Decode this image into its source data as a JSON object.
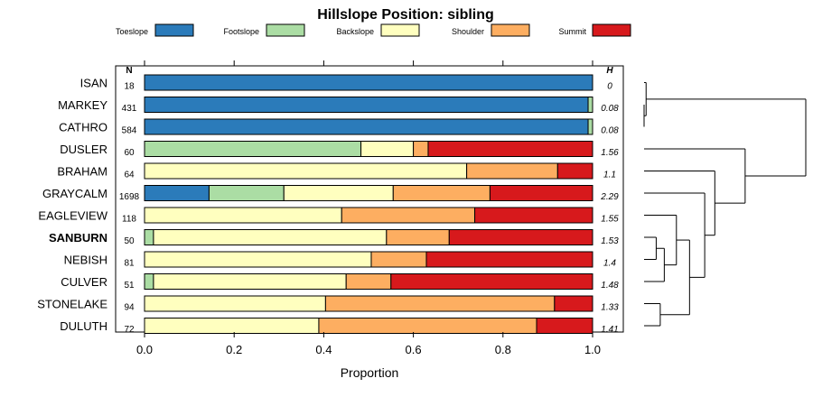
{
  "chart_data": {
    "type": "bar",
    "stacked": true,
    "orientation": "horizontal",
    "title": "Hillslope Position: sibling",
    "xlabel": "Proportion",
    "xlim": [
      0,
      1
    ],
    "x_ticks": [
      "0.0",
      "0.2",
      "0.4",
      "0.6",
      "0.8",
      "1.0"
    ],
    "x_tick_values": [
      0,
      0.2,
      0.4,
      0.6,
      0.8,
      1.0
    ],
    "n_header": "N",
    "h_header": "H",
    "legend_position": "top",
    "series": [
      {
        "name": "Toeslope",
        "color": "#2b7bba"
      },
      {
        "name": "Footslope",
        "color": "#abdda4"
      },
      {
        "name": "Backslope",
        "color": "#ffffbf"
      },
      {
        "name": "Shoulder",
        "color": "#fdae61"
      },
      {
        "name": "Summit",
        "color": "#d7191c"
      }
    ],
    "rows": [
      {
        "label": "ISAN",
        "n": "18",
        "h": "0",
        "bold": false,
        "values": [
          1.0,
          0,
          0,
          0,
          0
        ]
      },
      {
        "label": "MARKEY",
        "n": "431",
        "h": "0.08",
        "bold": false,
        "values": [
          0.99,
          0.01,
          0,
          0,
          0
        ]
      },
      {
        "label": "CATHRO",
        "n": "584",
        "h": "0.08",
        "bold": false,
        "values": [
          0.99,
          0.01,
          0,
          0,
          0
        ]
      },
      {
        "label": "DUSLER",
        "n": "60",
        "h": "1.56",
        "bold": false,
        "values": [
          0,
          0.483,
          0.117,
          0.033,
          0.367
        ]
      },
      {
        "label": "BRAHAM",
        "n": "64",
        "h": "1.1",
        "bold": false,
        "values": [
          0,
          0,
          0.719,
          0.203,
          0.078
        ]
      },
      {
        "label": "GRAYCALM",
        "n": "1698",
        "h": "2.29",
        "bold": false,
        "values": [
          0.144,
          0.167,
          0.244,
          0.216,
          0.229
        ]
      },
      {
        "label": "EAGLEVIEW",
        "n": "118",
        "h": "1.55",
        "bold": false,
        "values": [
          0,
          0,
          0.44,
          0.297,
          0.263
        ]
      },
      {
        "label": "SANBURN",
        "n": "50",
        "h": "1.53",
        "bold": true,
        "values": [
          0,
          0.02,
          0.52,
          0.14,
          0.32
        ]
      },
      {
        "label": "NEBISH",
        "n": "81",
        "h": "1.4",
        "bold": false,
        "values": [
          0,
          0,
          0.506,
          0.123,
          0.371
        ]
      },
      {
        "label": "CULVER",
        "n": "51",
        "h": "1.48",
        "bold": false,
        "values": [
          0,
          0.02,
          0.43,
          0.1,
          0.45
        ]
      },
      {
        "label": "STONELAKE",
        "n": "94",
        "h": "1.33",
        "bold": false,
        "values": [
          0,
          0,
          0.404,
          0.511,
          0.085
        ]
      },
      {
        "label": "DULUTH",
        "n": "72",
        "h": "1.41",
        "bold": false,
        "values": [
          0,
          0,
          0.389,
          0.486,
          0.125
        ]
      }
    ],
    "dendrogram": {
      "merges": [
        [
          2,
          3,
          0.0
        ],
        [
          1,
          13,
          0.02
        ],
        [
          8,
          9,
          0.12
        ],
        [
          11,
          12,
          0.16
        ],
        [
          10,
          15,
          0.2
        ],
        [
          7,
          17,
          0.32
        ],
        [
          16,
          18,
          0.45
        ],
        [
          6,
          19,
          0.6
        ],
        [
          5,
          20,
          0.7
        ],
        [
          4,
          21,
          1.0
        ],
        [
          14,
          22,
          1.6
        ]
      ],
      "max_height": 1.6
    }
  }
}
